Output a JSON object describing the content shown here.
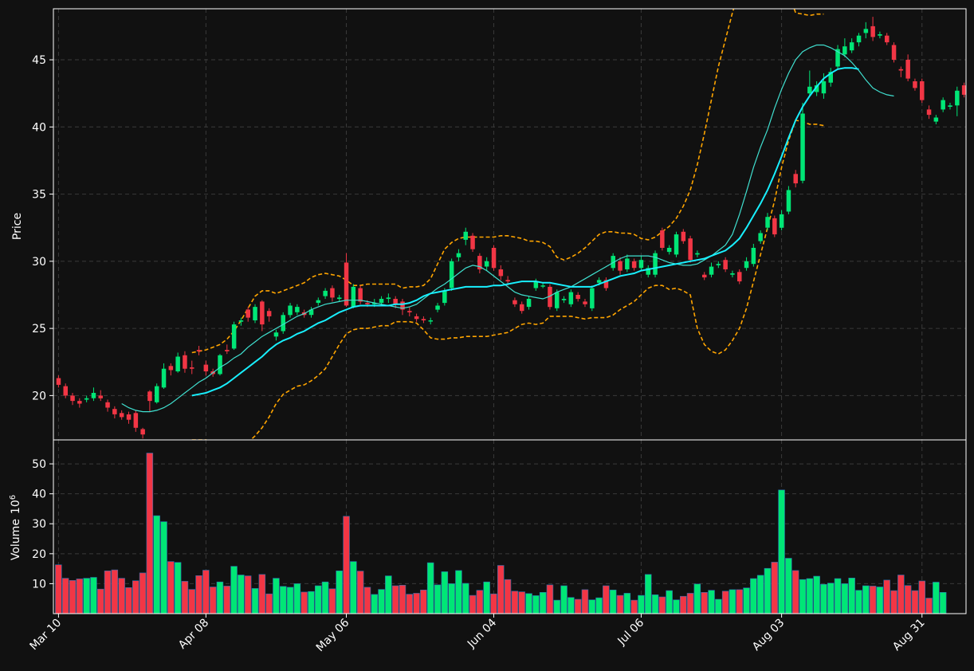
{
  "chart_data": {
    "type": "candlestick",
    "colors": {
      "background": "#111111",
      "up": "#00e676",
      "down": "#f23645",
      "ma_fast": "#40e0d0",
      "ma_slow": "#18f0ff",
      "band": "#ffa500",
      "grid": "#3a3a3a",
      "frame": "#ffffff",
      "text": "#ffffff"
    },
    "price_panel": {
      "ylabel": "Price",
      "ylim": [
        16.7,
        48.8
      ],
      "yticks": [
        20,
        25,
        30,
        35,
        40,
        45
      ],
      "grid": true
    },
    "volume_panel": {
      "ylabel": "Volume",
      "ylabel_exponent": "6",
      "ylim": [
        0,
        58
      ],
      "yticks": [
        10,
        20,
        30,
        40,
        50
      ],
      "grid": true
    },
    "x_ticks": [
      {
        "label": "Mar 10",
        "index": 0
      },
      {
        "label": "Apr 08",
        "index": 21
      },
      {
        "label": "May 06",
        "index": 41
      },
      {
        "label": "Jun 04",
        "index": 62
      },
      {
        "label": "Jul 06",
        "index": 83
      },
      {
        "label": "Aug 03",
        "index": 103
      },
      {
        "label": "Aug 31",
        "index": 123
      }
    ],
    "candles": [
      [
        21.3,
        20.8,
        21.5,
        20.6
      ],
      [
        20.7,
        20.0,
        20.9,
        19.8
      ],
      [
        20.0,
        19.6,
        20.2,
        19.3
      ],
      [
        19.6,
        19.4,
        19.8,
        19.1
      ],
      [
        19.7,
        19.8,
        20.0,
        19.5
      ],
      [
        19.8,
        20.2,
        20.6,
        19.6
      ],
      [
        20.0,
        19.8,
        20.4,
        19.6
      ],
      [
        19.5,
        19.1,
        19.7,
        18.8
      ],
      [
        19.0,
        18.6,
        19.2,
        18.3
      ],
      [
        18.7,
        18.4,
        18.9,
        18.2
      ],
      [
        18.6,
        18.2,
        18.8,
        17.9
      ],
      [
        18.7,
        17.6,
        18.9,
        17.3
      ],
      [
        17.5,
        17.1,
        17.6,
        16.8
      ],
      [
        20.3,
        19.6,
        20.4,
        18.8
      ],
      [
        19.5,
        20.7,
        20.9,
        19.4
      ],
      [
        20.6,
        22.0,
        22.4,
        20.5
      ],
      [
        22.2,
        21.9,
        22.4,
        21.5
      ],
      [
        21.8,
        22.9,
        23.2,
        21.7
      ],
      [
        23.0,
        22.0,
        23.3,
        21.7
      ],
      [
        22.1,
        22.0,
        22.6,
        21.6
      ],
      [
        23.4,
        23.3,
        23.7,
        23.0
      ],
      [
        22.3,
        21.8,
        22.6,
        21.5
      ],
      [
        21.8,
        21.6,
        22.0,
        21.4
      ],
      [
        21.6,
        23.0,
        23.1,
        21.5
      ],
      [
        23.4,
        23.3,
        23.8,
        23.1
      ],
      [
        23.5,
        25.3,
        25.5,
        23.4
      ],
      [
        25.5,
        25.6,
        25.8,
        25.2
      ],
      [
        26.4,
        25.8,
        26.6,
        25.5
      ],
      [
        25.6,
        26.6,
        26.8,
        25.4
      ],
      [
        27.0,
        25.3,
        27.1,
        24.8
      ],
      [
        26.3,
        25.9,
        26.5,
        25.5
      ],
      [
        24.4,
        24.7,
        24.9,
        24.1
      ],
      [
        24.8,
        26.0,
        26.2,
        24.6
      ],
      [
        26.0,
        26.7,
        26.9,
        25.8
      ],
      [
        26.2,
        26.6,
        26.8,
        26.0
      ],
      [
        26.2,
        26.0,
        26.4,
        25.8
      ],
      [
        26.0,
        26.4,
        26.6,
        25.8
      ],
      [
        26.9,
        27.1,
        27.3,
        26.7
      ],
      [
        27.4,
        27.8,
        28.0,
        27.2
      ],
      [
        28.0,
        27.3,
        28.2,
        27.0
      ],
      [
        27.2,
        27.3,
        27.5,
        27.0
      ],
      [
        29.9,
        26.7,
        30.6,
        26.6
      ],
      [
        26.6,
        28.1,
        28.3,
        26.5
      ],
      [
        28.0,
        27.0,
        28.2,
        26.8
      ],
      [
        26.9,
        26.8,
        27.1,
        26.6
      ],
      [
        26.8,
        26.9,
        27.2,
        26.6
      ],
      [
        26.9,
        27.2,
        27.4,
        26.7
      ],
      [
        27.2,
        27.3,
        27.6,
        26.9
      ],
      [
        27.2,
        26.8,
        27.4,
        26.5
      ],
      [
        27.0,
        26.4,
        27.2,
        26.0
      ],
      [
        26.3,
        26.2,
        26.6,
        25.9
      ],
      [
        25.9,
        25.7,
        26.1,
        25.5
      ],
      [
        25.7,
        25.6,
        25.9,
        25.4
      ],
      [
        25.6,
        25.6,
        25.8,
        25.3
      ],
      [
        26.4,
        26.7,
        26.9,
        26.2
      ],
      [
        26.9,
        27.8,
        28.0,
        26.7
      ],
      [
        28.0,
        30.0,
        30.2,
        27.8
      ],
      [
        30.3,
        30.6,
        30.9,
        30.0
      ],
      [
        31.6,
        32.2,
        32.5,
        31.2
      ],
      [
        31.9,
        30.9,
        32.1,
        30.7
      ],
      [
        30.4,
        29.4,
        30.6,
        29.1
      ],
      [
        29.6,
        30.0,
        30.3,
        29.3
      ],
      [
        31.0,
        29.5,
        31.2,
        29.3
      ],
      [
        29.4,
        28.9,
        29.7,
        28.6
      ],
      [
        28.6,
        28.5,
        28.9,
        28.2
      ],
      [
        27.1,
        26.8,
        27.3,
        26.6
      ],
      [
        26.8,
        26.3,
        27.0,
        26.1
      ],
      [
        26.6,
        27.2,
        27.4,
        26.4
      ],
      [
        28.0,
        28.5,
        28.7,
        27.8
      ],
      [
        28.2,
        28.2,
        28.4,
        28.0
      ],
      [
        28.1,
        26.6,
        28.3,
        26.4
      ],
      [
        26.5,
        27.7,
        27.9,
        26.3
      ],
      [
        27.1,
        27.2,
        27.4,
        26.9
      ],
      [
        26.8,
        27.7,
        27.9,
        26.6
      ],
      [
        27.5,
        27.2,
        27.7,
        27.0
      ],
      [
        27.0,
        26.8,
        27.2,
        26.6
      ],
      [
        26.5,
        28.0,
        28.2,
        26.3
      ],
      [
        28.4,
        28.6,
        28.8,
        28.2
      ],
      [
        28.6,
        28.0,
        28.8,
        27.8
      ],
      [
        29.5,
        30.4,
        30.6,
        29.3
      ],
      [
        30.0,
        29.3,
        30.3,
        29.0
      ],
      [
        29.4,
        30.2,
        30.5,
        29.2
      ],
      [
        30.0,
        29.5,
        30.2,
        29.3
      ],
      [
        29.5,
        30.1,
        30.4,
        29.3
      ],
      [
        29.0,
        29.5,
        29.7,
        28.8
      ],
      [
        29.0,
        30.6,
        30.8,
        28.8
      ],
      [
        32.3,
        31.0,
        32.5,
        30.8
      ],
      [
        30.7,
        31.0,
        31.2,
        30.5
      ],
      [
        30.5,
        32.0,
        32.2,
        30.3
      ],
      [
        32.2,
        31.5,
        32.4,
        31.3
      ],
      [
        31.7,
        30.1,
        31.9,
        29.9
      ],
      [
        30.5,
        30.6,
        30.8,
        30.3
      ],
      [
        29.0,
        28.8,
        29.2,
        28.6
      ],
      [
        29.0,
        29.6,
        29.9,
        28.8
      ],
      [
        29.7,
        29.8,
        30.0,
        29.5
      ],
      [
        30.1,
        29.4,
        30.3,
        29.2
      ],
      [
        29.0,
        29.1,
        29.3,
        28.8
      ],
      [
        29.2,
        28.5,
        29.4,
        28.3
      ],
      [
        29.5,
        30.0,
        30.3,
        29.3
      ],
      [
        29.8,
        31.0,
        31.3,
        29.6
      ],
      [
        31.5,
        32.1,
        32.3,
        31.3
      ],
      [
        32.5,
        33.3,
        33.6,
        32.3
      ],
      [
        33.2,
        32.0,
        33.4,
        31.8
      ],
      [
        32.5,
        33.5,
        33.8,
        32.3
      ],
      [
        33.7,
        35.3,
        35.6,
        33.5
      ],
      [
        36.5,
        35.8,
        36.8,
        35.5
      ],
      [
        36.0,
        41.0,
        41.8,
        35.8
      ],
      [
        42.5,
        43.0,
        44.2,
        42.3
      ],
      [
        42.6,
        43.1,
        43.4,
        42.3
      ],
      [
        42.5,
        43.4,
        44.0,
        42.1
      ],
      [
        43.3,
        44.1,
        44.4,
        43.0
      ],
      [
        44.5,
        45.8,
        46.1,
        44.3
      ],
      [
        45.4,
        46.0,
        46.6,
        45.2
      ],
      [
        45.7,
        46.3,
        46.6,
        45.5
      ],
      [
        46.3,
        46.8,
        47.0,
        46.0
      ],
      [
        47.0,
        47.3,
        47.8,
        46.6
      ],
      [
        47.5,
        46.7,
        48.2,
        46.4
      ],
      [
        46.8,
        46.9,
        47.1,
        46.6
      ],
      [
        46.8,
        46.3,
        47.0,
        46.1
      ],
      [
        46.1,
        45.0,
        46.3,
        44.8
      ],
      [
        44.3,
        44.2,
        44.5,
        43.7
      ],
      [
        45.0,
        43.6,
        45.4,
        43.4
      ],
      [
        43.4,
        42.9,
        43.6,
        42.7
      ],
      [
        43.4,
        42.0,
        43.6,
        41.8
      ],
      [
        41.3,
        40.9,
        41.6,
        40.6
      ],
      [
        40.4,
        40.7,
        40.9,
        40.2
      ],
      [
        41.3,
        42.0,
        42.2,
        41.1
      ],
      [
        41.5,
        41.6,
        41.8,
        41.3
      ],
      [
        41.6,
        42.7,
        43.0,
        40.8
      ],
      [
        43.1,
        42.4,
        43.3,
        42.2
      ]
    ],
    "volumes": [
      16.3,
      11.8,
      11.1,
      11.6,
      11.8,
      12.1,
      8.2,
      14.3,
      14.6,
      11.8,
      8.7,
      11.0,
      13.6,
      53.6,
      32.7,
      30.7,
      17.4,
      17.1,
      10.8,
      8.1,
      12.7,
      14.5,
      8.9,
      10.6,
      9.2,
      15.8,
      12.9,
      12.6,
      8.4,
      13.1,
      6.6,
      11.8,
      9.1,
      8.8,
      10.0,
      7.2,
      7.4,
      9.3,
      10.6,
      8.3,
      14.3,
      32.5,
      17.4,
      14.2,
      8.8,
      6.4,
      8.1,
      12.6,
      9.3,
      9.5,
      6.5,
      6.8,
      7.9,
      17.0,
      9.6,
      14.0,
      10.0,
      14.4,
      10.1,
      6.1,
      7.8,
      10.6,
      6.6,
      16.1,
      11.4,
      7.5,
      7.3,
      6.7,
      6.0,
      7.1,
      9.6,
      4.5,
      9.3,
      5.4,
      4.8,
      8.0,
      4.6,
      5.3,
      9.3,
      7.9,
      6.1,
      6.8,
      4.5,
      6.1,
      13.1,
      6.3,
      5.6,
      7.7,
      4.6,
      5.8,
      6.8,
      9.9,
      7.1,
      7.8,
      4.8,
      7.5,
      8.0,
      8.0,
      8.6,
      11.7,
      12.8,
      15.1,
      17.2,
      41.3,
      18.5,
      14.4,
      11.4,
      11.7,
      12.5,
      9.8,
      10.2,
      11.7,
      10.0,
      11.9,
      7.8,
      9.3,
      9.2,
      8.9,
      11.2,
      7.7,
      12.9,
      9.4,
      7.7,
      10.9,
      5.2,
      10.5,
      7.1
    ],
    "moving_averages": [
      {
        "start_index": 9,
        "color": "#40e0d0",
        "width": 1.2,
        "values": [
          19.4,
          19.1,
          18.9,
          18.8,
          18.8,
          18.9,
          19.1,
          19.4,
          19.8,
          20.2,
          20.6,
          21.0,
          21.3,
          21.7,
          22.1,
          22.4,
          22.8,
          23.1,
          23.6,
          24.0,
          24.4,
          24.7,
          25.0,
          25.3,
          25.6,
          25.9,
          26.1,
          26.4,
          26.6,
          26.8,
          26.9,
          27.0,
          27.1,
          27.1,
          27.1,
          27.0,
          26.9,
          26.8,
          26.7,
          26.6,
          26.5,
          26.6,
          26.8,
          27.2,
          27.6,
          28.0,
          28.3,
          28.7,
          29.1,
          29.5,
          29.7,
          29.6,
          29.3,
          28.9,
          28.5,
          28.1,
          27.7,
          27.5,
          27.4,
          27.3,
          27.2,
          27.4,
          27.7,
          27.9,
          28.1,
          28.4,
          28.7,
          29.0,
          29.3,
          29.6,
          29.9,
          30.2,
          30.4,
          30.4,
          30.4,
          30.4,
          30.3,
          30.1,
          29.9,
          29.8,
          29.7,
          29.7,
          29.8,
          30.1,
          30.4,
          30.8,
          31.2,
          32.0,
          33.5,
          35.2,
          37.0,
          38.5,
          39.8,
          41.4,
          42.8,
          44.0,
          45.0,
          45.6,
          45.9,
          46.1,
          46.1,
          45.9,
          45.6,
          45.3,
          44.8,
          44.2,
          43.5,
          42.9,
          42.6,
          42.4,
          42.3
        ]
      },
      {
        "start_index": 19,
        "color": "#18f0ff",
        "width": 2,
        "values": [
          20.0,
          20.1,
          20.2,
          20.4,
          20.6,
          20.9,
          21.3,
          21.7,
          22.1,
          22.5,
          22.9,
          23.4,
          23.8,
          24.1,
          24.3,
          24.6,
          24.8,
          25.1,
          25.4,
          25.6,
          25.9,
          26.2,
          26.4,
          26.6,
          26.7,
          26.7,
          26.7,
          26.7,
          26.7,
          26.8,
          26.8,
          26.9,
          27.1,
          27.4,
          27.6,
          27.7,
          27.8,
          27.9,
          28.0,
          28.1,
          28.1,
          28.1,
          28.1,
          28.2,
          28.2,
          28.3,
          28.4,
          28.5,
          28.5,
          28.5,
          28.4,
          28.4,
          28.3,
          28.2,
          28.1,
          28.1,
          28.1,
          28.1,
          28.3,
          28.5,
          28.7,
          28.9,
          29.0,
          29.1,
          29.3,
          29.4,
          29.5,
          29.6,
          29.7,
          29.8,
          29.9,
          30.0,
          30.1,
          30.2,
          30.4,
          30.6,
          30.8,
          31.2,
          31.7,
          32.5,
          33.4,
          34.3,
          35.3,
          36.5,
          37.8,
          39.2,
          40.5,
          41.5,
          42.3,
          43.0,
          43.6,
          44.0,
          44.3,
          44.4,
          44.4,
          44.3
        ]
      }
    ],
    "bands": {
      "upper": [
        null,
        null,
        null,
        null,
        null,
        null,
        null,
        null,
        null,
        null,
        null,
        null,
        null,
        null,
        null,
        null,
        null,
        null,
        null,
        23.2,
        23.3,
        23.4,
        23.6,
        23.8,
        24.2,
        24.8,
        25.6,
        26.5,
        27.4,
        27.8,
        27.8,
        27.6,
        27.8,
        28.0,
        28.2,
        28.4,
        28.8,
        29.0,
        29.1,
        29.0,
        28.9,
        28.6,
        28.2,
        28.2,
        28.3,
        28.3,
        28.3,
        28.3,
        28.3,
        28.0,
        28.1,
        28.1,
        28.2,
        28.7,
        29.8,
        30.9,
        31.4,
        31.7,
        31.8,
        31.8,
        31.8,
        31.8,
        31.8,
        31.9,
        31.9,
        31.8,
        31.7,
        31.5,
        31.5,
        31.4,
        31.1,
        30.3,
        30.1,
        30.3,
        30.6,
        31.0,
        31.5,
        32.0,
        32.2,
        32.2,
        32.1,
        32.1,
        32.0,
        31.7,
        31.6,
        31.8,
        32.2,
        32.6,
        33.2,
        34.1,
        35.3,
        37.2,
        39.5,
        42.0,
        44.5,
        46.5,
        48.5,
        50.2,
        51.5,
        52.3,
        52.8,
        53.0,
        52.5,
        51.5,
        50.0,
        48.5,
        48.4,
        48.3,
        48.4,
        48.4
      ],
      "lower": [
        null,
        null,
        null,
        null,
        null,
        null,
        null,
        null,
        null,
        null,
        null,
        null,
        null,
        null,
        null,
        null,
        null,
        null,
        null,
        16.7,
        16.7,
        16.7,
        16.6,
        16.4,
        16.2,
        16.2,
        16.3,
        16.5,
        17.0,
        17.6,
        18.4,
        19.4,
        20.1,
        20.4,
        20.7,
        20.8,
        21.1,
        21.5,
        22.0,
        22.9,
        23.8,
        24.6,
        24.9,
        25.0,
        25.0,
        25.1,
        25.2,
        25.2,
        25.5,
        25.5,
        25.5,
        25.4,
        24.9,
        24.3,
        24.2,
        24.2,
        24.3,
        24.3,
        24.4,
        24.4,
        24.4,
        24.4,
        24.5,
        24.6,
        24.7,
        25.0,
        25.3,
        25.4,
        25.3,
        25.4,
        25.9,
        25.9,
        25.9,
        25.9,
        25.8,
        25.7,
        25.8,
        25.8,
        25.8,
        26.0,
        26.4,
        26.7,
        27.0,
        27.5,
        28.0,
        28.2,
        28.2,
        27.9,
        28.0,
        27.8,
        27.5,
        25.0,
        23.8,
        23.3,
        23.1,
        23.4,
        24.1,
        25.0,
        26.5,
        28.5,
        30.5,
        32.5,
        34.5,
        37.0,
        39.0,
        40.5,
        40.4,
        40.2,
        40.2,
        40.1
      ]
    }
  }
}
